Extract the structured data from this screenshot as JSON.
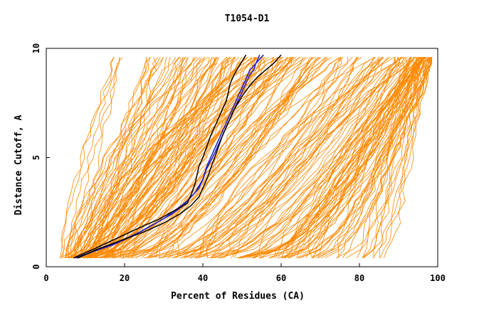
{
  "chart_data": {
    "type": "line",
    "title": "T1054-D1",
    "xlabel": "Percent of Residues (CA)",
    "ylabel": "Distance Cutoff, A",
    "xlim": [
      0,
      100
    ],
    "ylim": [
      0,
      10
    ],
    "xticks": [
      "0",
      "20",
      "40",
      "60",
      "80",
      "100"
    ],
    "yticks": [
      "0",
      "5",
      "10"
    ],
    "grid": false,
    "legend": "none",
    "colors": {
      "models": "#ff8800",
      "highlight_blue": "#1f1fbf",
      "highlight_black": "#000000"
    },
    "model_profiles": [
      {
        "start": 4,
        "top": 20
      },
      {
        "start": 5,
        "top": 27
      },
      {
        "start": 6,
        "top": 30
      },
      {
        "start": 6,
        "top": 33
      },
      {
        "start": 7,
        "top": 35
      },
      {
        "start": 7,
        "top": 38
      },
      {
        "start": 8,
        "top": 40
      },
      {
        "start": 8,
        "top": 42
      },
      {
        "start": 9,
        "top": 44
      },
      {
        "start": 9,
        "top": 46
      },
      {
        "start": 10,
        "top": 48
      },
      {
        "start": 10,
        "top": 50
      },
      {
        "start": 11,
        "top": 52
      },
      {
        "start": 12,
        "top": 54
      },
      {
        "start": 12,
        "top": 56
      },
      {
        "start": 13,
        "top": 58
      },
      {
        "start": 14,
        "top": 60
      },
      {
        "start": 15,
        "top": 62
      },
      {
        "start": 16,
        "top": 64
      },
      {
        "start": 18,
        "top": 66
      },
      {
        "start": 20,
        "top": 68
      },
      {
        "start": 22,
        "top": 70
      },
      {
        "start": 25,
        "top": 72
      },
      {
        "start": 28,
        "top": 75
      },
      {
        "start": 30,
        "top": 78
      },
      {
        "start": 33,
        "top": 82
      },
      {
        "start": 35,
        "top": 86
      },
      {
        "start": 38,
        "top": 88
      },
      {
        "start": 40,
        "top": 90
      },
      {
        "start": 42,
        "top": 91
      },
      {
        "start": 45,
        "top": 92
      },
      {
        "start": 48,
        "top": 93
      },
      {
        "start": 50,
        "top": 94
      },
      {
        "start": 52,
        "top": 95
      },
      {
        "start": 55,
        "top": 95
      },
      {
        "start": 58,
        "top": 96
      },
      {
        "start": 60,
        "top": 96
      },
      {
        "start": 62,
        "top": 97
      },
      {
        "start": 65,
        "top": 97
      },
      {
        "start": 68,
        "top": 98
      },
      {
        "start": 70,
        "top": 98
      },
      {
        "start": 75,
        "top": 98
      },
      {
        "start": 80,
        "top": 98
      },
      {
        "start": 85,
        "top": 98
      }
    ],
    "series": [
      {
        "x": [
          8,
          12,
          17,
          22,
          26,
          30,
          33,
          36,
          38,
          40,
          41,
          42,
          43,
          44,
          45,
          46,
          47,
          48,
          49,
          50,
          51,
          52,
          53,
          54,
          55,
          55.5
        ],
        "y": [
          0.4,
          0.7,
          1.0,
          1.4,
          1.8,
          2.2,
          2.6,
          3.0,
          3.4,
          4.0,
          4.6,
          5.0,
          5.4,
          5.8,
          6.2,
          6.6,
          7.0,
          7.4,
          7.8,
          8.2,
          8.6,
          9.0,
          9.2,
          9.4,
          9.6,
          9.7
        ]
      },
      {
        "x": [
          7.5,
          12,
          18,
          24,
          28,
          32,
          35,
          37,
          39,
          40,
          41,
          43,
          44,
          45,
          46,
          47,
          48,
          49,
          50,
          51,
          52,
          53,
          53.5,
          54,
          54.5
        ],
        "y": [
          0.4,
          0.7,
          1.1,
          1.6,
          2.0,
          2.4,
          2.8,
          3.2,
          3.6,
          4.0,
          4.5,
          5.2,
          5.6,
          6.0,
          6.4,
          6.8,
          7.2,
          7.6,
          8.0,
          8.4,
          8.8,
          9.0,
          9.3,
          9.5,
          9.7
        ]
      },
      {
        "x": [
          7,
          12,
          18,
          24,
          29,
          33,
          36,
          37,
          38,
          38.5,
          39,
          40,
          41,
          42,
          43,
          44,
          45,
          46,
          46.5,
          47,
          48,
          49,
          50,
          51
        ],
        "y": [
          0.4,
          0.8,
          1.3,
          1.8,
          2.2,
          2.6,
          2.9,
          3.3,
          3.8,
          4.2,
          4.6,
          5.0,
          5.5,
          6.0,
          6.4,
          6.8,
          7.2,
          7.6,
          8.0,
          8.4,
          8.8,
          9.1,
          9.4,
          9.7
        ]
      },
      {
        "x": [
          8,
          13,
          19,
          25,
          30,
          34,
          37,
          39,
          40,
          41,
          42,
          43,
          44,
          45,
          46,
          47,
          48,
          50,
          52,
          54,
          56,
          58,
          60
        ],
        "y": [
          0.4,
          0.8,
          1.2,
          1.6,
          2.0,
          2.4,
          2.8,
          3.2,
          3.6,
          4.0,
          4.5,
          5.0,
          5.5,
          6.0,
          6.4,
          6.8,
          7.2,
          7.8,
          8.3,
          8.7,
          9.0,
          9.3,
          9.7
        ]
      }
    ]
  }
}
